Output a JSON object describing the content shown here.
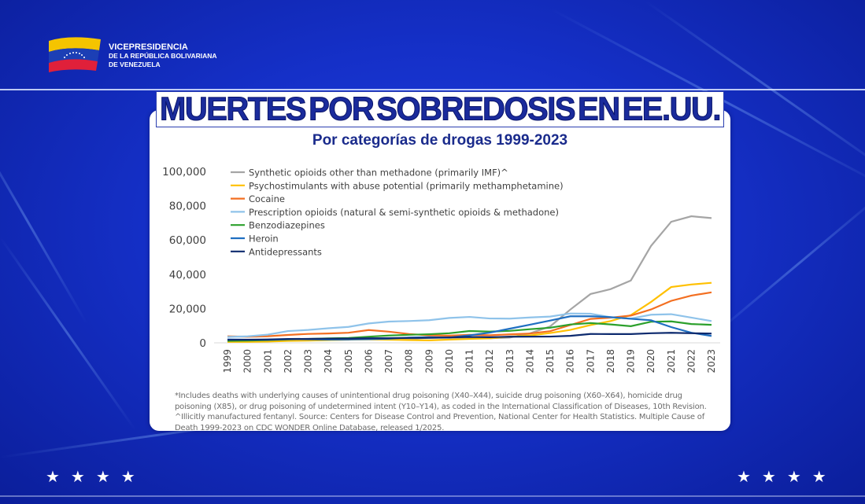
{
  "header": {
    "org_line1": "VICEPRESIDENCIA",
    "org_line2": "DE LA REPÚBLICA BOLIVARIANA",
    "org_line3": "DE VENEZUELA"
  },
  "title_words": [
    "MUERTES",
    "POR",
    "SOBREDOSIS",
    "EN",
    "EE.UU."
  ],
  "subtitle": "Por categorías de drogas 1999-2023",
  "footnote": "*Includes deaths with underlying causes of unintentional drug poisoning (X40–X44), suicide drug poisoning (X60–X64), homicide drug poisoning (X85), or drug poisoning of undetermined intent (Y10–Y14), as coded in the International Classification of Diseases, 10th Revision. ^Illicitly manufactured fentanyl. Source: Centers for Disease Control and Prevention, National Center for Health Statistics. Multiple Cause of Death 1999-2023 on CDC WONDER Online Database, released 1/2025.",
  "stars": "★★★★",
  "chart_data": {
    "type": "line",
    "title": "Por categorías de drogas 1999-2023",
    "xlabel": "",
    "ylabel": "",
    "ylim": [
      0,
      100000
    ],
    "yticks": [
      0,
      20000,
      40000,
      60000,
      80000,
      100000
    ],
    "ytick_labels": [
      "0",
      "20,000",
      "40,000",
      "60,000",
      "80,000",
      "100,000"
    ],
    "legend_position": "top-left",
    "x": [
      1999,
      2000,
      2001,
      2002,
      2003,
      2004,
      2005,
      2006,
      2007,
      2008,
      2009,
      2010,
      2011,
      2012,
      2013,
      2014,
      2015,
      2016,
      2017,
      2018,
      2019,
      2020,
      2021,
      2022,
      2023
    ],
    "series": [
      {
        "name": "Synthetic opioids other than methadone (primarily IMF)^",
        "color": "#a5a5a5",
        "values": [
          730,
          782,
          957,
          1295,
          1400,
          1664,
          1742,
          2707,
          2213,
          2306,
          2946,
          3007,
          2666,
          2628,
          3105,
          5544,
          9580,
          19413,
          28466,
          31335,
          36359,
          56516,
          70601,
          73838,
          72776
        ]
      },
      {
        "name": "Psychostimulants with abuse potential (primarily methamphetamine)",
        "color": "#ffc000",
        "values": [
          547,
          578,
          741,
          1145,
          1290,
          1589,
          1958,
          1969,
          1798,
          1612,
          1434,
          1854,
          2266,
          2635,
          3627,
          4298,
          5716,
          7542,
          10333,
          12676,
          16167,
          23837,
          32537,
          34022,
          35000
        ]
      },
      {
        "name": "Cocaine",
        "color": "#f36f21",
        "values": [
          3822,
          3544,
          3833,
          4599,
          5199,
          5443,
          5871,
          7448,
          6512,
          5129,
          4350,
          4183,
          4681,
          4404,
          4944,
          5415,
          6784,
          10375,
          13942,
          14666,
          15883,
          19447,
          24486,
          27569,
          29449
        ]
      },
      {
        "name": "Prescription opioids (natural & semi-synthetic opioids & methadone)",
        "color": "#8fc3ea",
        "values": [
          3442,
          3785,
          4770,
          6860,
          7500,
          8500,
          9300,
          11300,
          12400,
          12700,
          13200,
          14500,
          15100,
          14200,
          14100,
          14800,
          15300,
          17100,
          17000,
          14900,
          14100,
          16400,
          16700,
          14700,
          12700
        ]
      },
      {
        "name": "Benzodiazepines",
        "color": "#2ca02c",
        "values": [
          1135,
          1298,
          1594,
          2007,
          2248,
          2585,
          2797,
          3595,
          4248,
          4678,
          5014,
          5587,
          6872,
          6524,
          6973,
          7945,
          8791,
          10684,
          11537,
          10724,
          9711,
          12290,
          12499,
          10964,
          10500
        ]
      },
      {
        "name": "Heroin",
        "color": "#1f6fc1",
        "values": [
          1960,
          1842,
          1779,
          2089,
          2080,
          1878,
          2009,
          2088,
          2399,
          3041,
          3278,
          3036,
          4397,
          5925,
          8257,
          10574,
          12989,
          15469,
          15482,
          14996,
          14019,
          13165,
          9173,
          5871,
          3984
        ]
      },
      {
        "name": "Antidepressants",
        "color": "#0d2a6e",
        "values": [
          1749,
          1798,
          1947,
          2234,
          2303,
          2437,
          2470,
          2651,
          2721,
          2846,
          2905,
          3144,
          3440,
          3280,
          3542,
          3616,
          3638,
          4086,
          5154,
          5113,
          5090,
          5597,
          5863,
          5600,
          5400
        ]
      }
    ]
  }
}
